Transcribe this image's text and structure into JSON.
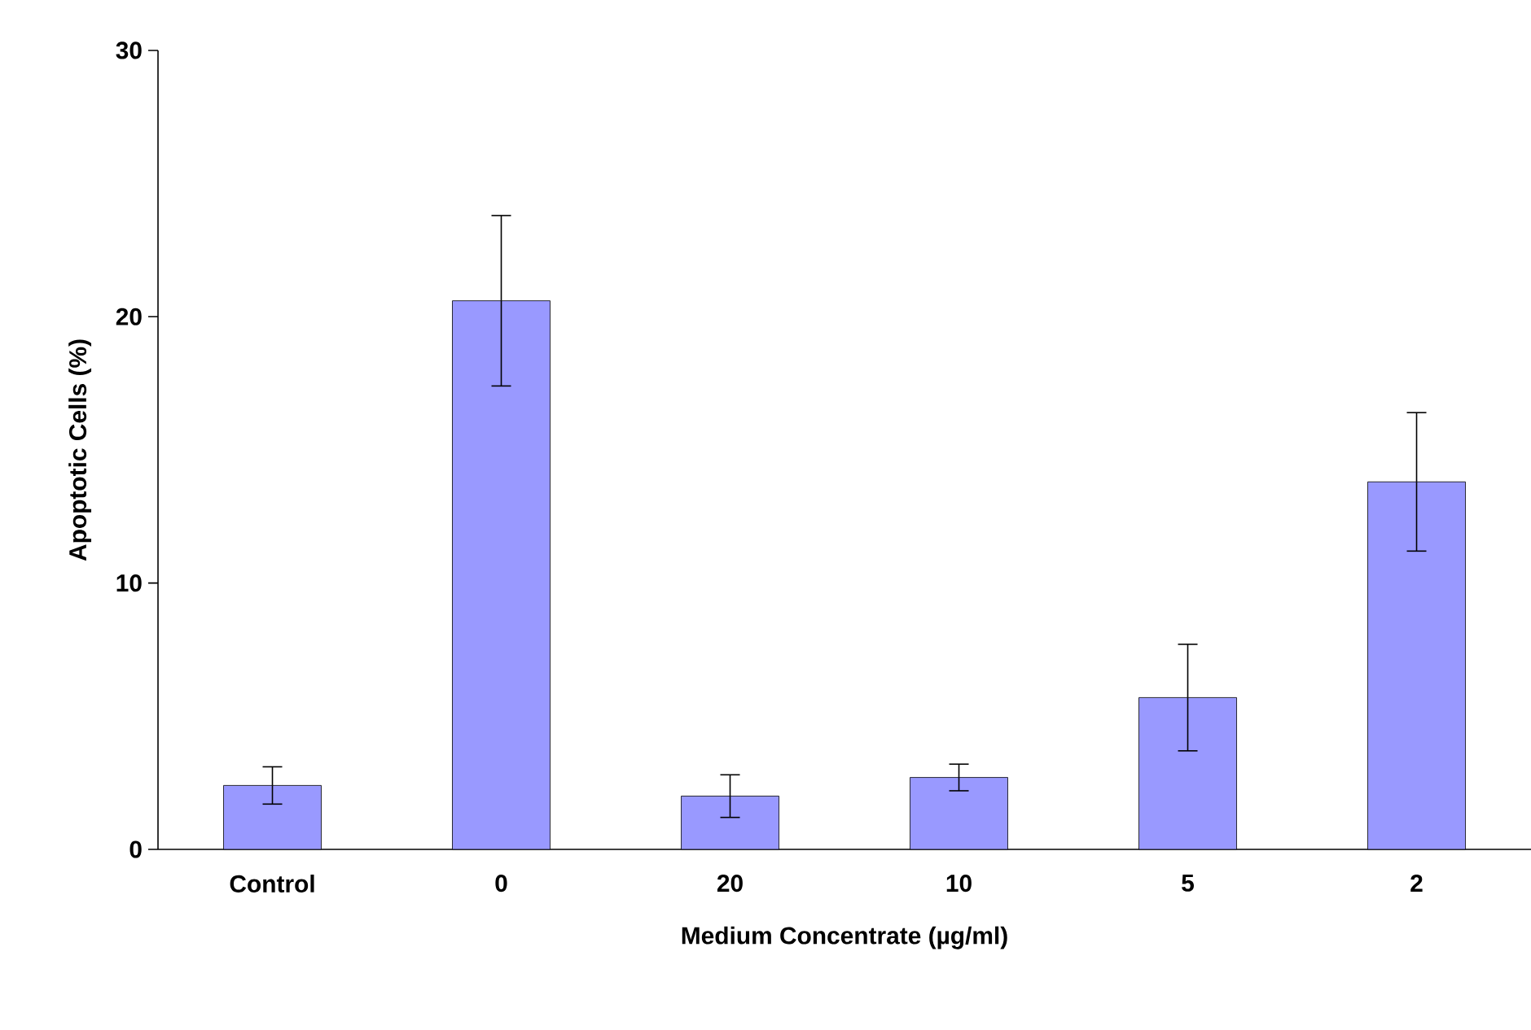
{
  "chart_data": {
    "type": "bar",
    "xlabel": "Medium Concentrate (µg/ml)",
    "ylabel": "Apoptotic Cells (%)",
    "categories": [
      "Control",
      "0",
      "20",
      "10",
      "5",
      "2"
    ],
    "values": [
      2.4,
      20.6,
      2.0,
      2.7,
      5.7,
      13.8
    ],
    "errors": [
      0.7,
      3.2,
      0.8,
      0.5,
      2.0,
      2.6
    ],
    "color": "#9999ff",
    "ylim": [
      0,
      30
    ],
    "yticks": [
      0,
      10,
      20,
      30
    ]
  }
}
